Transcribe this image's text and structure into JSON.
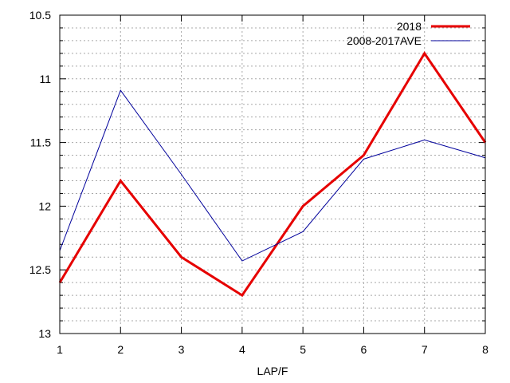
{
  "chart_data": {
    "type": "line",
    "title": "",
    "xlabel": "LAP/F",
    "ylabel": "",
    "x": [
      1,
      2,
      3,
      4,
      5,
      6,
      7,
      8
    ],
    "xlim": [
      1,
      8
    ],
    "ylim": [
      10.5,
      13
    ],
    "y_inverted": true,
    "xticks": [
      "1",
      "2",
      "3",
      "4",
      "5",
      "6",
      "7",
      "8"
    ],
    "yticks": [
      {
        "value": 10.5,
        "label": "10.5"
      },
      {
        "value": 11,
        "label": "11"
      },
      {
        "value": 11.5,
        "label": "11.5"
      },
      {
        "value": 12,
        "label": "12"
      },
      {
        "value": 12.5,
        "label": "12.5"
      },
      {
        "value": 13,
        "label": "13"
      }
    ],
    "y_minor_step": 0.1,
    "grid": true,
    "legend_position": "top-right",
    "series": [
      {
        "name": "2018",
        "color": "#e60000",
        "values": [
          12.6,
          11.8,
          12.4,
          12.7,
          12.0,
          11.6,
          10.8,
          11.5
        ]
      },
      {
        "name": "2008-2017AVE",
        "color": "#00009b",
        "values": [
          12.35,
          11.09,
          11.75,
          12.43,
          12.2,
          11.63,
          11.48,
          11.62
        ]
      }
    ]
  }
}
